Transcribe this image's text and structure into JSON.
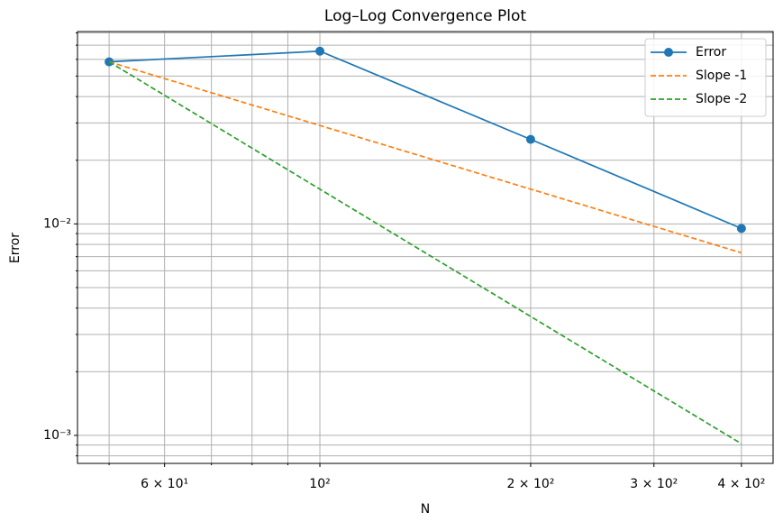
{
  "chart_data": {
    "type": "line",
    "title": "Log–Log Convergence Plot",
    "x_label": "N",
    "y_label": "Error",
    "x": [
      50,
      100,
      200,
      400
    ],
    "series": [
      {
        "name": "Error",
        "color": "#1f77b4",
        "style": "solid",
        "marker": "circle",
        "values": [
          0.0584,
          0.0656,
          0.0251,
          0.00952
        ]
      },
      {
        "name": "Slope -1",
        "color": "#ff7f0e",
        "style": "dashed",
        "values": [
          0.0584,
          0.0292,
          0.0146,
          0.0073
        ]
      },
      {
        "name": "Slope -2",
        "color": "#2ca02c",
        "style": "dashed",
        "values": [
          0.0584,
          0.0146,
          0.00365,
          0.000913
        ]
      }
    ],
    "xscale": "log",
    "yscale": "log",
    "xlim": [
      45.06,
      443.9
    ],
    "ylim": [
      0.000737,
      0.0812
    ],
    "xticks": [
      {
        "value": 60,
        "label": "6 × 10¹"
      },
      {
        "value": 100,
        "label": "10²"
      },
      {
        "value": 200,
        "label": "2 × 10²"
      },
      {
        "value": 300,
        "label": "3 × 10²"
      },
      {
        "value": 400,
        "label": "4 × 10²"
      }
    ],
    "x_minor_ticks": [
      50,
      70,
      80,
      90
    ],
    "yticks": [
      {
        "value": 0.001,
        "label": "10⁻³"
      },
      {
        "value": 0.01,
        "label": "10⁻²"
      }
    ],
    "y_minor_ticks": [
      0.0008,
      0.0009,
      0.002,
      0.003,
      0.004,
      0.005,
      0.006,
      0.007,
      0.008,
      0.009,
      0.02,
      0.03,
      0.04,
      0.05,
      0.06,
      0.07,
      0.08
    ],
    "grid": true,
    "legend": "upper right"
  }
}
